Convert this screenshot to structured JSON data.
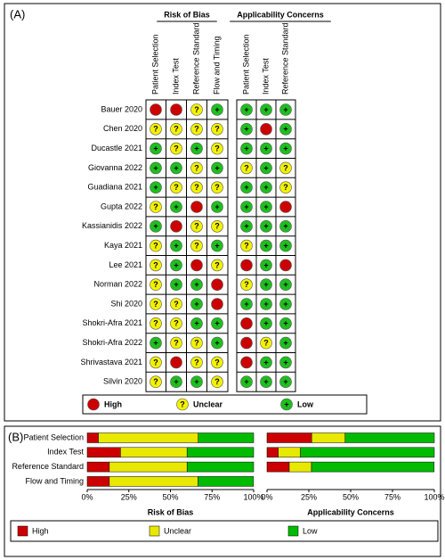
{
  "panel_a": {
    "label": "(A)",
    "groups": [
      {
        "title": "Risk of Bias",
        "columns": [
          "Patient Selection",
          "Index Test",
          "Reference Standard",
          "Flow and Timing"
        ]
      },
      {
        "title": "Applicability Concerns",
        "columns": [
          "Patient Selection",
          "Index Test",
          "Reference Standard"
        ]
      }
    ],
    "legend": [
      {
        "label": "High",
        "color": "#cc0000"
      },
      {
        "label": "Unclear",
        "symbol": "?",
        "color": "#f2f200"
      },
      {
        "label": "Low",
        "symbol": "+",
        "color": "#1fbf1f"
      }
    ],
    "studies": [
      {
        "name": "Bauer 2020",
        "judgments": [
          [
            0,
            0,
            1,
            2
          ],
          [
            2,
            2,
            2
          ]
        ]
      },
      {
        "name": "Chen 2020",
        "judgments": [
          [
            1,
            1,
            1,
            1
          ],
          [
            2,
            0,
            2
          ]
        ]
      },
      {
        "name": "Ducastle 2021",
        "judgments": [
          [
            2,
            1,
            2,
            1
          ],
          [
            2,
            2,
            2
          ]
        ]
      },
      {
        "name": "Giovanna 2022",
        "judgments": [
          [
            2,
            2,
            1,
            2
          ],
          [
            1,
            2,
            1
          ]
        ]
      },
      {
        "name": "Guadiana 2021",
        "judgments": [
          [
            2,
            1,
            1,
            1
          ],
          [
            2,
            2,
            1
          ]
        ]
      },
      {
        "name": "Gupta 2022",
        "judgments": [
          [
            1,
            2,
            0,
            2
          ],
          [
            2,
            2,
            0
          ]
        ]
      },
      {
        "name": "Kassianidis 2022",
        "judgments": [
          [
            2,
            0,
            1,
            1
          ],
          [
            2,
            2,
            2
          ]
        ]
      },
      {
        "name": "Kaya 2021",
        "judgments": [
          [
            1,
            2,
            1,
            2
          ],
          [
            1,
            2,
            2
          ]
        ]
      },
      {
        "name": "Lee 2021",
        "judgments": [
          [
            1,
            2,
            0,
            1
          ],
          [
            0,
            2,
            0
          ]
        ]
      },
      {
        "name": "Norman 2022",
        "judgments": [
          [
            1,
            2,
            2,
            0
          ],
          [
            1,
            2,
            2
          ]
        ]
      },
      {
        "name": "Shi 2020",
        "judgments": [
          [
            1,
            1,
            2,
            0
          ],
          [
            2,
            2,
            2
          ]
        ]
      },
      {
        "name": "Shokri-Afra 2021",
        "judgments": [
          [
            1,
            1,
            2,
            2
          ],
          [
            0,
            2,
            2
          ]
        ]
      },
      {
        "name": "Shokri-Afra 2022",
        "judgments": [
          [
            2,
            1,
            1,
            2
          ],
          [
            0,
            1,
            2
          ]
        ]
      },
      {
        "name": "Shrivastava 2021",
        "judgments": [
          [
            1,
            0,
            1,
            1
          ],
          [
            0,
            2,
            2
          ]
        ]
      },
      {
        "name": "Silvin 2020",
        "judgments": [
          [
            1,
            2,
            2,
            1
          ],
          [
            2,
            2,
            2
          ]
        ]
      }
    ]
  },
  "panel_b_label": "(B)",
  "chart_data": [
    {
      "type": "stacked_barh",
      "title": "Risk of Bias",
      "categories": [
        "Patient Selection",
        "Index Test",
        "Reference Standard",
        "Flow and Timing"
      ],
      "series": [
        {
          "name": "High",
          "color": "#cc0000",
          "values": [
            6.7,
            20,
            13.3,
            13.3
          ]
        },
        {
          "name": "Unclear",
          "color": "#e8e800",
          "values": [
            60,
            40,
            46.7,
            53.3
          ]
        },
        {
          "name": "Low",
          "color": "#00bb00",
          "values": [
            33.3,
            40,
            40,
            33.3
          ]
        }
      ],
      "xlim": [
        0,
        100
      ],
      "xticks": [
        {
          "value": 0,
          "label": "0%"
        },
        {
          "value": 25,
          "label": "25%"
        },
        {
          "value": 50,
          "label": "50%"
        },
        {
          "value": 75,
          "label": "75%"
        },
        {
          "value": 100,
          "label": "100%"
        }
      ]
    },
    {
      "type": "stacked_barh",
      "title": "Applicability Concerns",
      "categories": [
        null,
        null,
        null
      ],
      "series": [
        {
          "name": "High",
          "color": "#cc0000",
          "values": [
            26.7,
            6.7,
            13.3
          ]
        },
        {
          "name": "Unclear",
          "color": "#e8e800",
          "values": [
            20,
            13.3,
            13.3
          ]
        },
        {
          "name": "Low",
          "color": "#00bb00",
          "values": [
            53.3,
            80,
            73.3
          ]
        }
      ],
      "xlim": [
        0,
        100
      ],
      "xticks": [
        {
          "value": 0,
          "label": "0%"
        },
        {
          "value": 25,
          "label": "25%"
        },
        {
          "value": 50,
          "label": "50%"
        },
        {
          "value": 75,
          "label": "75%"
        },
        {
          "value": 100,
          "label": "100%"
        }
      ]
    }
  ]
}
